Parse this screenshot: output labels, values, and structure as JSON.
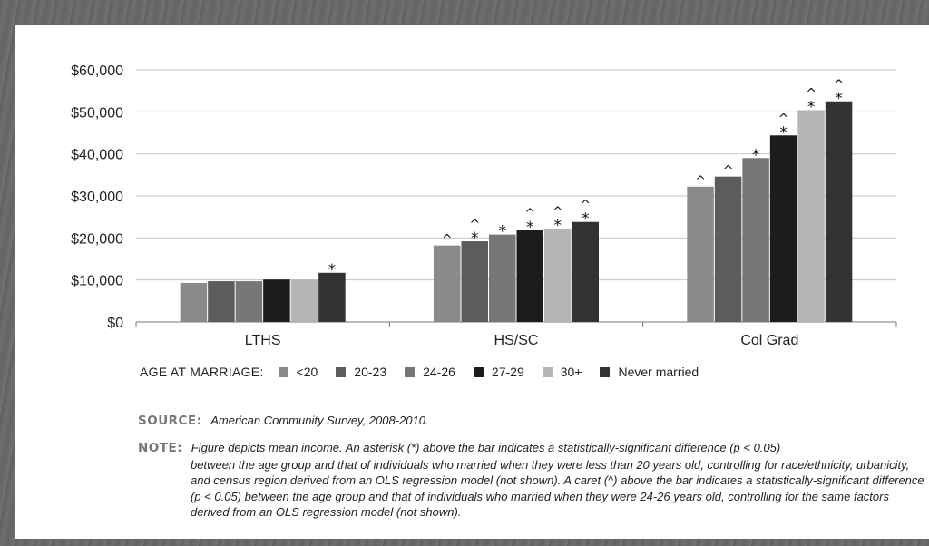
{
  "chart_data": {
    "type": "bar",
    "categories": [
      "LTHS",
      "HS/SC",
      "Col Grad"
    ],
    "series": [
      {
        "name": "<20",
        "color": "#8a8a8a",
        "values": [
          9300,
          18200,
          32200
        ],
        "markers": [
          "",
          "^",
          "^"
        ]
      },
      {
        "name": "20-23",
        "color": "#5c5c5c",
        "values": [
          9700,
          19200,
          34600
        ],
        "markers": [
          "",
          "^*",
          "^"
        ]
      },
      {
        "name": "24-26",
        "color": "#777777",
        "values": [
          9700,
          20800,
          39000
        ],
        "markers": [
          "",
          "*",
          "*"
        ]
      },
      {
        "name": "27-29",
        "color": "#1c1c1c",
        "values": [
          10100,
          21800,
          44400
        ],
        "markers": [
          "",
          "^*",
          "^*"
        ]
      },
      {
        "name": "30+",
        "color": "#b5b5b5",
        "values": [
          10100,
          22200,
          50400
        ],
        "markers": [
          "",
          "^*",
          "^*"
        ]
      },
      {
        "name": "Never married",
        "color": "#333333",
        "values": [
          11700,
          23800,
          52500
        ],
        "markers": [
          "*",
          "^*",
          "^*"
        ]
      }
    ],
    "ylim": [
      0,
      60000
    ],
    "yticks": [
      0,
      10000,
      20000,
      30000,
      40000,
      50000,
      60000
    ],
    "ytick_labels": [
      "$0",
      "$10,000",
      "$20,000",
      "$30,000",
      "$40,000",
      "$50,000",
      "$60,000"
    ],
    "grid": true,
    "legend_title": "AGE AT MARRIAGE:",
    "legend_position": "bottom"
  },
  "source": {
    "label": "SOURCE:",
    "text": "American Community Survey, 2008-2010."
  },
  "note": {
    "label": "NOTE:",
    "line1": "Figure depicts mean income. An asterisk (*) above the bar indicates a statistically-significant difference (p < 0.05)",
    "rest": "between the age group and that of individuals who married when they were less than 20 years old, controlling for race/ethnicity, urbanicity, and census region derived from an OLS regression model (not shown). A caret (^) above the bar indicates a statistically-significant difference (p < 0.05) between the age group and that of individuals who married when they were 24-26 years old, controlling for the same factors derived from an OLS regression model (not shown)."
  }
}
